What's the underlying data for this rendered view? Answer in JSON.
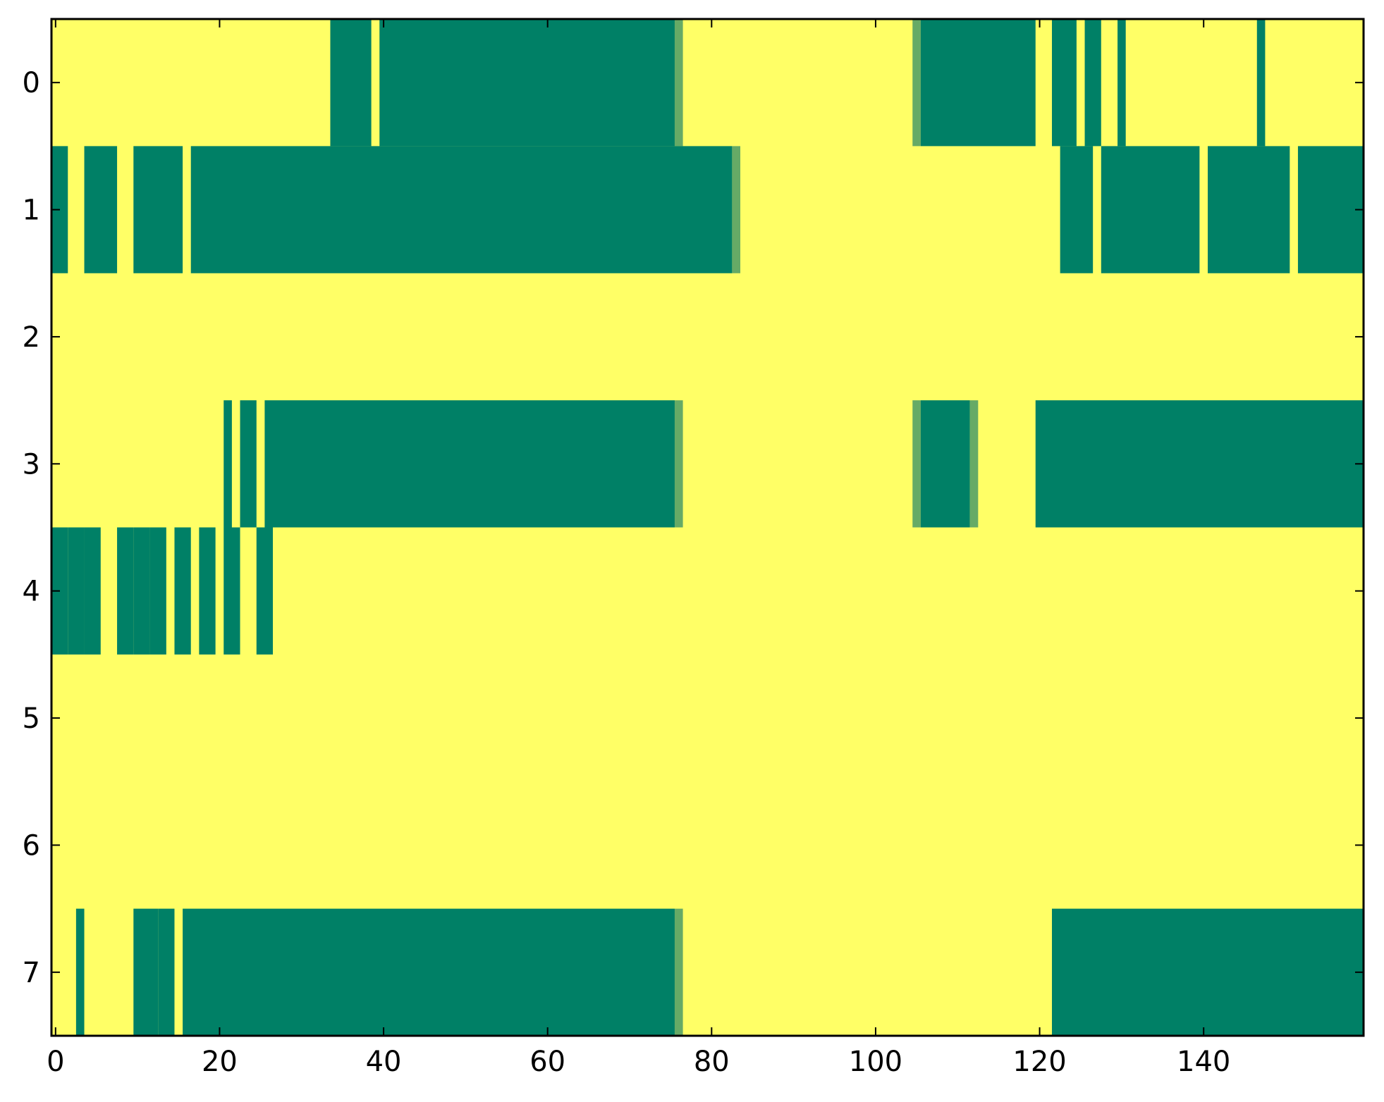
{
  "chart_data": {
    "type": "heatmap",
    "title": "",
    "xlabel": "",
    "ylabel": "",
    "xlim": [
      -0.5,
      159.5
    ],
    "ylim": [
      7.5,
      -0.5
    ],
    "x_ticks": [
      0,
      20,
      40,
      60,
      80,
      100,
      120,
      140
    ],
    "y_ticks": [
      0,
      1,
      2,
      3,
      4,
      5,
      6,
      7
    ],
    "grid": false,
    "legend": "none",
    "colormap": {
      "0.0": "#ffff66",
      "0.5": "#66aa66",
      "1.0": "#008066"
    },
    "value_ranges_note": "cells not listed are 0 (yellow); each range is [start_col, end_col, value]",
    "rows": [
      {
        "row": 0,
        "ranges": [
          [
            34,
            38,
            1
          ],
          [
            40,
            75,
            1
          ],
          [
            76,
            76,
            0.5
          ],
          [
            105,
            105,
            0.5
          ],
          [
            106,
            119,
            1
          ],
          [
            122,
            124,
            1
          ],
          [
            126,
            127,
            1
          ],
          [
            130,
            130,
            1
          ],
          [
            147,
            147,
            1
          ]
        ]
      },
      {
        "row": 1,
        "ranges": [
          [
            0,
            1,
            1
          ],
          [
            4,
            7,
            1
          ],
          [
            10,
            15,
            1
          ],
          [
            17,
            82,
            1
          ],
          [
            83,
            83,
            0.5
          ],
          [
            123,
            126,
            1
          ],
          [
            128,
            139,
            1
          ],
          [
            141,
            150,
            1
          ],
          [
            152,
            159,
            1
          ]
        ]
      },
      {
        "row": 2,
        "ranges": []
      },
      {
        "row": 3,
        "ranges": [
          [
            21,
            21,
            1
          ],
          [
            23,
            24,
            1
          ],
          [
            26,
            75,
            1
          ],
          [
            76,
            76,
            0.5
          ],
          [
            105,
            105,
            0.5
          ],
          [
            106,
            111,
            1
          ],
          [
            112,
            112,
            0.5
          ],
          [
            120,
            159,
            1
          ]
        ]
      },
      {
        "row": 4,
        "ranges": [
          [
            -1,
            1,
            1
          ],
          [
            2,
            3,
            1
          ],
          [
            4,
            5,
            1
          ],
          [
            8,
            9,
            1
          ],
          [
            10,
            11,
            1
          ],
          [
            12,
            13,
            1
          ],
          [
            15,
            16,
            1
          ],
          [
            18,
            19,
            1
          ],
          [
            21,
            22,
            1
          ],
          [
            25,
            26,
            1
          ]
        ]
      },
      {
        "row": 5,
        "ranges": []
      },
      {
        "row": 6,
        "ranges": []
      },
      {
        "row": 7,
        "ranges": [
          [
            3,
            3,
            1
          ],
          [
            10,
            12,
            1
          ],
          [
            13,
            14,
            1
          ],
          [
            16,
            75,
            1
          ],
          [
            76,
            76,
            0.5
          ],
          [
            122,
            159,
            1
          ]
        ]
      }
    ]
  }
}
